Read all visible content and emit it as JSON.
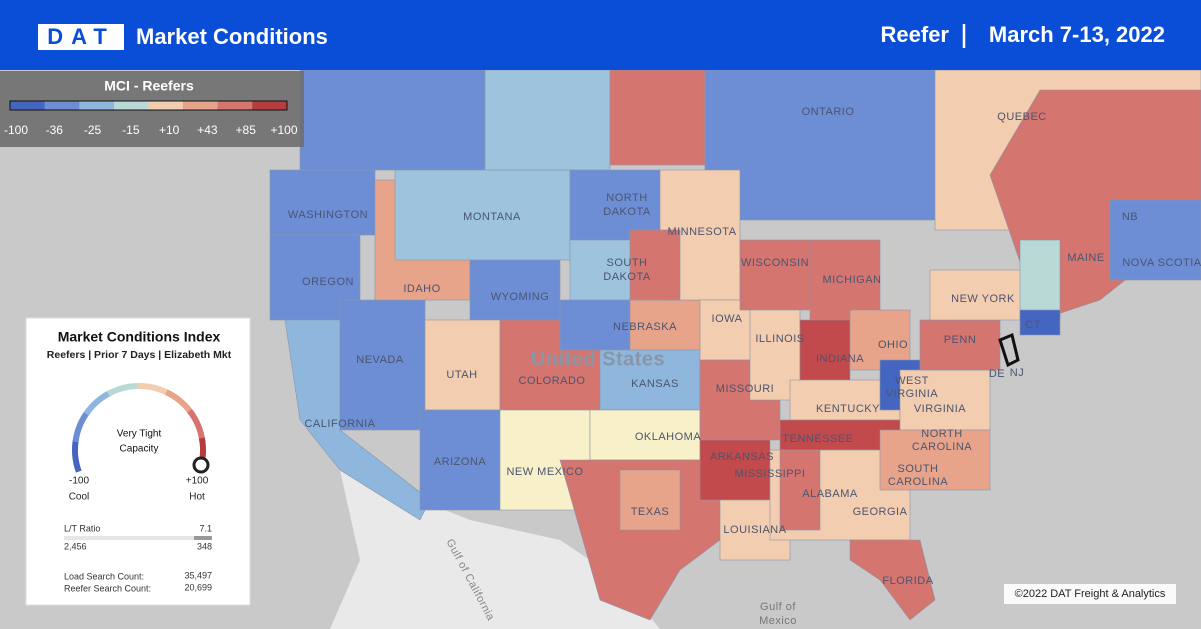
{
  "header": {
    "logo": "DAT",
    "title": "Market Conditions",
    "equipment": "Reefer",
    "date_range": "March 7-13, 2022"
  },
  "legend": {
    "title": "MCI - Reefers",
    "scale_labels": [
      "-100",
      "-36",
      "-25",
      "-15",
      "+10",
      "+43",
      "+85",
      "+100"
    ],
    "colors": [
      "#4566c0",
      "#6d8ed5",
      "#8fb6dc",
      "#b9d9d6",
      "#f2cdb0",
      "#e7a48a",
      "#d47570",
      "#b53d3f"
    ]
  },
  "panel": {
    "title": "Market Conditions Index",
    "subtitle": "Reefers | Prior 7 Days | Elizabeth Mkt",
    "gauge_text": [
      "Very Tight",
      "Capacity"
    ],
    "min": "-100",
    "min_label": "Cool",
    "max": "+100",
    "max_label": "Hot",
    "ratio_label": "L/T Ratio",
    "ratio_value": "7.1",
    "loads": "2,456",
    "trucks": "348",
    "load_search_label": "Load Search Count:",
    "load_search_value": "35,497",
    "reefer_search_label": "Reefer Search Count:",
    "reefer_search_value": "20,699"
  },
  "map": {
    "labels": [
      "ONTARIO",
      "QUEBEC",
      "NB",
      "NOVA SCOTIA",
      "WASHINGTON",
      "MONTANA",
      "NORTH",
      "DAKOTA",
      "SOUTH",
      "DAKOTA",
      "MINNESOTA",
      "WISCONSIN",
      "MICHIGAN",
      "OREGON",
      "IDAHO",
      "WYOMING",
      "NEBRASKA",
      "IOWA",
      "ILLINOIS",
      "INDIANA",
      "OHIO",
      "NEW YORK",
      "PENN",
      "MAINE",
      "CT",
      "NEVADA",
      "UTAH",
      "COLORADO",
      "KANSAS",
      "MISSOURI",
      "KENTUCKY",
      "WEST",
      "VIRGINIA",
      "VIRGINIA",
      "DE",
      "NJ",
      "CALIFORNIA",
      "ARIZONA",
      "NEW MEXICO",
      "OKLAHOMA",
      "ARKANSAS",
      "TENNESSEE",
      "NORTH",
      "CAROLINA",
      "SOUTH",
      "CAROLINA",
      "MISSISSIPPI",
      "ALABAMA",
      "GEORGIA",
      "LOUISIANA",
      "TEXAS",
      "FLORIDA",
      "United States",
      "Gulf of",
      "Mexico",
      "Gulf of California"
    ],
    "copyright": "©2022 DAT Freight & Analytics"
  }
}
